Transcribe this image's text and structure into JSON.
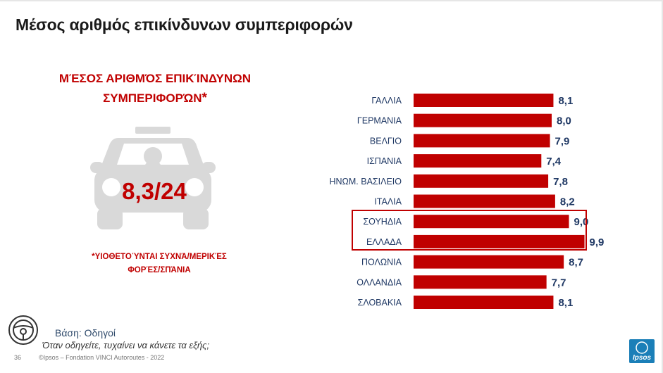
{
  "title": "Μέσος αριθμός επικίνδυνων συμπεριφορών",
  "callout": {
    "title_line1": "ΜΈΣΟΣ ΑΡΙΘΜΌΣ ΕΠΙΚΊΝΔΥΝΩΝ",
    "title_line2": "ΣΥΜΠΕΡΙΦΟΡΏΝ",
    "title_star": "*",
    "value": "8,3/24",
    "footnote_line1": "*ΥΙΟΘΕΤΟΎΝΤΑΙ ΣΥΧΝΆ/ΜΕΡΙΚΈΣ",
    "footnote_line2": "ΦΟΡΈΣ/ΣΠΆΝΙΑ"
  },
  "chart_data": {
    "type": "bar",
    "orientation": "horizontal",
    "categories": [
      "ΓΑΛΛΙΑ",
      "ΓΕΡΜΑΝΙΑ",
      "ΒΕΛΓΙΟ",
      "ΙΣΠΑΝΙΑ",
      "ΗΝΩΜ. ΒΑΣΙΛΕΙΟ",
      "ΙΤΑΛΙΑ",
      "ΣΟΥΗΔΙΑ",
      "ΕΛΛΑΔΑ",
      "ΠΟΛΩΝΙΑ",
      "ΟΛΛΑΝΔΙΑ",
      "ΣΛΟΒΑΚΙΑ"
    ],
    "values": [
      8.1,
      8.0,
      7.9,
      7.4,
      7.8,
      8.2,
      9.0,
      9.9,
      8.7,
      7.7,
      8.1
    ],
    "value_labels": [
      "8,1",
      "8,0",
      "7,9",
      "7,4",
      "7,8",
      "8,2",
      "9,0",
      "9,9",
      "8,7",
      "7,7",
      "8,1"
    ],
    "highlighted": [
      "ΣΟΥΗΔΙΑ",
      "ΕΛΛΑΔΑ"
    ],
    "bar_color": "#c00000",
    "value_label_color": "#1f3864",
    "category_label_color": "#1f3864",
    "grid": false
  },
  "footer": {
    "base": "Βάση: Οδηγοί",
    "question": "Όταν οδηγείτε, τυχαίνει να κάνετε τα εξής;",
    "page_number": "36",
    "copyright": "©Ipsos – Fondation VINCI Autoroutes - 2022",
    "logo_text": "Ipsos"
  },
  "icons": [
    "taxi-icon",
    "steering-wheel-icon",
    "ipsos-logo"
  ]
}
